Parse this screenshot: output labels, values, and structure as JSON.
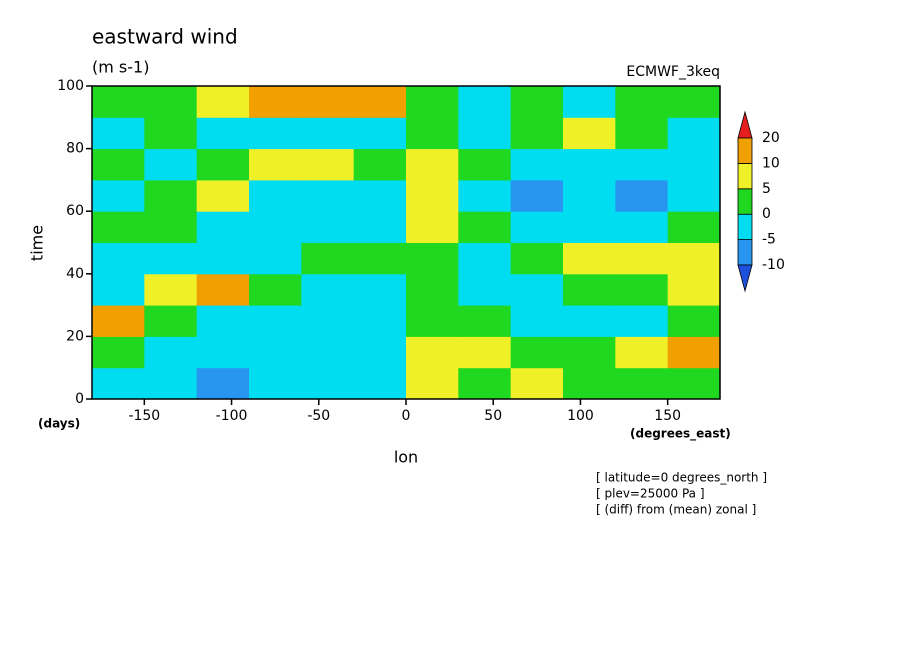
{
  "chart_data": {
    "type": "contour",
    "title": "eastward wind",
    "units": "(m s-1)",
    "source": "ECMWF_3keq",
    "x_label": "lon",
    "y_label": "time",
    "x_unit": "(degrees_east)",
    "y_unit": "(days)",
    "notes": [
      "[ latitude=0 degrees_north ]",
      "[ plev=25000 Pa ]",
      "[ (diff) from (mean) zonal ]"
    ],
    "xlim": [
      -180,
      180
    ],
    "ylim": [
      0,
      100
    ],
    "xticks": [
      -150,
      -100,
      -50,
      0,
      50,
      100,
      150
    ],
    "yticks": [
      0,
      20,
      40,
      60,
      80,
      100
    ],
    "lon": [
      -165,
      -135,
      -105,
      -75,
      -45,
      -15,
      15,
      45,
      75,
      105,
      135,
      165
    ],
    "time": [
      5,
      15,
      25,
      35,
      45,
      55,
      65,
      75,
      85,
      95
    ],
    "z": [
      [
        -3,
        -4,
        -8,
        -2,
        -3,
        -4,
        8,
        2,
        6,
        2,
        4,
        3
      ],
      [
        2,
        -2,
        -3,
        -4,
        -3,
        -2,
        8,
        5,
        2,
        0,
        8,
        15
      ],
      [
        10,
        2,
        -2,
        -3,
        -3,
        -3,
        4,
        2,
        -2,
        -3,
        -2,
        2
      ],
      [
        -2,
        8,
        10,
        2,
        -3,
        -3,
        3,
        -3,
        -4,
        0,
        4,
        6
      ],
      [
        -3,
        -2,
        -3,
        -2,
        0,
        2,
        4,
        -2,
        4,
        8,
        8,
        6
      ],
      [
        2,
        4,
        -2,
        -4,
        -2,
        -4,
        6,
        2,
        -3,
        -4,
        -2,
        2
      ],
      [
        -2,
        3,
        7,
        -2,
        -3,
        -3,
        8,
        -2,
        -8,
        -4,
        -6,
        -3
      ],
      [
        2,
        -5,
        3,
        8,
        8,
        2,
        8,
        4,
        -3,
        -3,
        -4,
        -2
      ],
      [
        -2,
        3,
        -3,
        -5,
        -3,
        -2,
        2,
        -3,
        3,
        6,
        2,
        -2
      ],
      [
        3,
        3,
        8,
        10,
        12,
        15,
        4,
        -2,
        3,
        -2,
        1,
        3
      ]
    ],
    "levels": [
      -10,
      -5,
      0,
      5,
      10,
      20
    ],
    "colors": [
      "#1e50dc",
      "#2896f0",
      "#00dcf0",
      "#20d820",
      "#f0f028",
      "#f0a000",
      "#e61e1e"
    ]
  }
}
